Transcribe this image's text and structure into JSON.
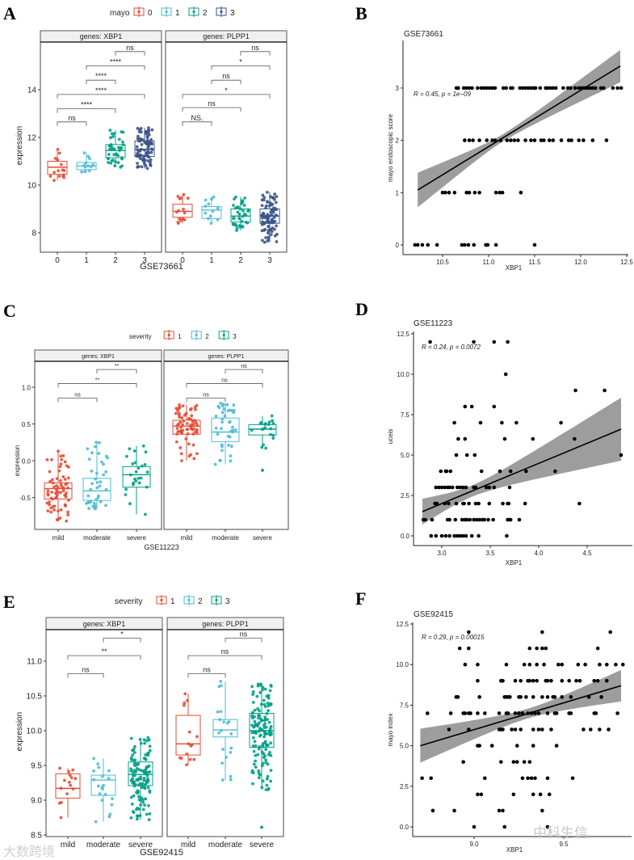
{
  "chart_data": [
    {
      "panel": "A",
      "type": "boxplot",
      "legend": {
        "title": "mayo",
        "levels": [
          "0",
          "1",
          "2",
          "3"
        ],
        "colors": [
          "#E64B35",
          "#4DBBD5",
          "#00A087",
          "#3C5488"
        ]
      },
      "categories": [
        "0",
        "1",
        "2",
        "3"
      ],
      "xlabel": "GSE73661",
      "ylabel": "expression",
      "yticks": [
        8,
        10,
        12,
        14
      ],
      "ylim": [
        7.2,
        16.0
      ],
      "facets": [
        {
          "strip": "genes: XBP1",
          "boxes": [
            {
              "q1": 10.45,
              "median": 10.75,
              "q3": 11.0,
              "lo": 10.2,
              "hi": 11.5,
              "n": 15
            },
            {
              "q1": 10.65,
              "median": 10.8,
              "q3": 10.95,
              "lo": 10.55,
              "hi": 11.35,
              "n": 12
            },
            {
              "q1": 11.15,
              "median": 11.45,
              "q3": 11.7,
              "lo": 10.75,
              "hi": 12.3,
              "n": 40
            },
            {
              "q1": 11.2,
              "median": 11.5,
              "q3": 11.85,
              "lo": 10.7,
              "hi": 12.4,
              "n": 90
            }
          ],
          "comparisons": [
            {
              "a": 0,
              "b": 1,
              "label": "ns",
              "y": 12.65
            },
            {
              "a": 0,
              "b": 2,
              "label": "****",
              "y": 13.2
            },
            {
              "a": 0,
              "b": 3,
              "label": "****",
              "y": 13.8
            },
            {
              "a": 1,
              "b": 2,
              "label": "****",
              "y": 14.4
            },
            {
              "a": 1,
              "b": 3,
              "label": "****",
              "y": 15.0
            },
            {
              "a": 2,
              "b": 3,
              "label": "ns",
              "y": 15.6
            }
          ]
        },
        {
          "strip": "genes: PLPP1",
          "boxes": [
            {
              "q1": 8.65,
              "median": 8.9,
              "q3": 9.2,
              "lo": 8.4,
              "hi": 9.6,
              "n": 15
            },
            {
              "q1": 8.6,
              "median": 8.95,
              "q3": 9.1,
              "lo": 8.4,
              "hi": 9.5,
              "n": 12
            },
            {
              "q1": 8.45,
              "median": 8.7,
              "q3": 9.0,
              "lo": 8.1,
              "hi": 9.5,
              "n": 40
            },
            {
              "q1": 8.4,
              "median": 8.7,
              "q3": 9.0,
              "lo": 7.6,
              "hi": 9.7,
              "n": 90
            }
          ],
          "comparisons": [
            {
              "a": 0,
              "b": 1,
              "label": "NS.",
              "y": 12.65
            },
            {
              "a": 0,
              "b": 2,
              "label": "ns",
              "y": 13.25
            },
            {
              "a": 0,
              "b": 3,
              "label": "*",
              "y": 13.8
            },
            {
              "a": 1,
              "b": 2,
              "label": "ns",
              "y": 14.4
            },
            {
              "a": 1,
              "b": 3,
              "label": "*",
              "y": 15.0
            },
            {
              "a": 2,
              "b": 3,
              "label": "ns",
              "y": 15.6
            }
          ]
        }
      ]
    },
    {
      "panel": "B",
      "type": "scatter",
      "title": "GSE73661",
      "xlabel": "XBP1",
      "ylabel": "mayo endoscopic score",
      "annotation": "R = 0.45, p = 1e−09",
      "xticks": [
        "10.5",
        "11.0",
        "11.5",
        "12.0",
        "12.5"
      ],
      "yticks": [
        "0",
        "1",
        "2",
        "3"
      ],
      "regression": {
        "x": [
          10.23,
          12.43
        ],
        "y": [
          1.05,
          3.42
        ]
      },
      "ci_halfwidth": {
        "start": 0.33,
        "end": 0.31,
        "min": 0.07,
        "at": 11.15
      },
      "points_by_y": {
        "3": [
          10.65,
          10.67,
          10.73,
          10.76,
          10.79,
          10.82,
          10.88,
          10.92,
          10.95,
          10.98,
          11.01,
          11.04,
          11.07,
          11.16,
          11.19,
          11.24,
          11.26,
          11.34,
          11.37,
          11.4,
          11.43,
          11.46,
          11.49,
          11.51,
          11.56,
          11.62,
          11.64,
          11.67,
          11.7,
          11.73,
          11.81,
          11.86,
          11.89,
          11.94,
          11.98,
          12.01,
          12.04,
          12.07,
          12.1,
          12.13,
          12.16,
          12.22,
          12.25,
          12.35,
          12.4,
          12.44
        ],
        "2": [
          10.74,
          10.79,
          10.83,
          10.9,
          10.98,
          11.04,
          11.07,
          11.13,
          11.2,
          11.24,
          11.28,
          11.32,
          11.4,
          11.46,
          11.5,
          11.57,
          11.6,
          11.66,
          11.7,
          11.79,
          11.87,
          11.9,
          11.98,
          12.03,
          12.13,
          12.28
        ],
        "1": [
          10.5,
          10.53,
          10.57,
          10.63,
          10.76,
          10.79,
          10.85,
          10.9,
          11.08,
          11.12,
          11.15,
          11.35
        ],
        "0": [
          10.2,
          10.23,
          10.28,
          10.34,
          10.44,
          10.71,
          10.74,
          10.78,
          10.84,
          10.97,
          10.99,
          11.08,
          11.5
        ]
      }
    },
    {
      "panel": "C",
      "type": "boxplot",
      "legend": {
        "title": "severity",
        "levels": [
          "1",
          "2",
          "3"
        ],
        "colors": [
          "#E64B35",
          "#4DBBD5",
          "#00A087"
        ]
      },
      "categories": [
        "mild",
        "moderate",
        "severe"
      ],
      "xlabel": "GSE11223",
      "ylabel": "expression",
      "yticks": [
        -0.5,
        0.0,
        0.5,
        1.0
      ],
      "ytick_labels": [
        "-0.5",
        "0.0",
        "0.5",
        "1.0"
      ],
      "ylim": [
        -0.93,
        1.35
      ],
      "facets": [
        {
          "strip": "genes: XBP1",
          "boxes": [
            {
              "q1": -0.52,
              "median": -0.38,
              "q3": -0.3,
              "lo": -0.82,
              "hi": 0.13,
              "n": 70
            },
            {
              "q1": -0.54,
              "median": -0.41,
              "q3": -0.24,
              "lo": -0.65,
              "hi": 0.25,
              "n": 40
            },
            {
              "q1": -0.36,
              "median": -0.19,
              "q3": -0.08,
              "lo": -0.73,
              "hi": 0.2,
              "n": 25
            }
          ],
          "comparisons": [
            {
              "a": 0,
              "b": 1,
              "label": "ns",
              "y": 0.85
            },
            {
              "a": 0,
              "b": 2,
              "label": "**",
              "y": 1.05
            },
            {
              "a": 1,
              "b": 2,
              "label": "**",
              "y": 1.24
            }
          ]
        },
        {
          "strip": "genes: PLPP1",
          "boxes": [
            {
              "q1": 0.36,
              "median": 0.47,
              "q3": 0.55,
              "lo": 0.0,
              "hi": 0.76,
              "n": 70
            },
            {
              "q1": 0.26,
              "median": 0.39,
              "q3": 0.58,
              "lo": -0.05,
              "hi": 0.78,
              "n": 40
            },
            {
              "q1": 0.35,
              "median": 0.43,
              "q3": 0.49,
              "lo": 0.17,
              "hi": 0.61,
              "n": 20,
              "outliers": [
                -0.13
              ]
            }
          ],
          "comparisons": [
            {
              "a": 0,
              "b": 1,
              "label": "ns",
              "y": 0.85
            },
            {
              "a": 0,
              "b": 2,
              "label": "ns",
              "y": 1.05
            },
            {
              "a": 1,
              "b": 2,
              "label": "ns",
              "y": 1.24
            }
          ]
        }
      ]
    },
    {
      "panel": "D",
      "type": "scatter",
      "title": "GSE11223",
      "xlabel": "XBP1",
      "ylabel": "uceis",
      "annotation": "R = 0.24, p = 0.0072",
      "xticks": [
        "3.0",
        "3.5",
        "4.0",
        "4.5"
      ],
      "yticks": [
        "0.0",
        "2.5",
        "5.0",
        "7.5",
        "10.0",
        "12.5"
      ],
      "regression": {
        "x": [
          2.8,
          4.85
        ],
        "y": [
          1.5,
          6.6
        ]
      },
      "ci_halfwidth": {
        "start": 0.8,
        "end": 1.95,
        "min": 0.35,
        "at": 3.3
      },
      "points_by_y": {
        "12": [
          2.88,
          3.33,
          3.54,
          3.68
        ],
        "10": [
          3.66
        ],
        "9": [
          4.38,
          4.68
        ],
        "8": [
          3.24,
          3.31,
          3.54
        ],
        "7": [
          3.13,
          3.4,
          3.62,
          3.77,
          4.23
        ],
        "6": [
          3.17,
          3.24,
          3.65,
          3.94,
          4.37
        ],
        "5": [
          3.15,
          3.26,
          3.34,
          4.85
        ],
        "4": [
          2.99,
          3.04,
          3.05,
          3.09,
          3.41,
          3.6,
          3.71,
          3.87,
          4.17
        ],
        "3": [
          2.94,
          2.97,
          3.0,
          3.03,
          3.06,
          3.08,
          3.11,
          3.16,
          3.19,
          3.22,
          3.25,
          3.33,
          3.35,
          3.46,
          3.49,
          3.54,
          3.7
        ],
        "2": [
          2.93,
          2.95,
          3.03,
          3.07,
          3.15,
          3.22,
          3.23,
          3.28,
          3.35,
          3.38,
          3.49,
          3.63,
          3.68,
          3.69,
          3.86,
          4.42
        ],
        "1": [
          2.81,
          2.83,
          2.9,
          3.06,
          3.08,
          3.14,
          3.21,
          3.24,
          3.26,
          3.29,
          3.33,
          3.36,
          3.39,
          3.42,
          3.44,
          3.48,
          3.53,
          3.68,
          3.69,
          3.71,
          3.8
        ],
        "0": [
          2.89,
          2.94,
          3.0,
          3.04,
          3.08,
          3.13,
          3.16,
          3.19,
          3.22,
          3.25,
          3.31,
          3.38,
          3.67
        ]
      }
    },
    {
      "panel": "E",
      "type": "boxplot",
      "legend": {
        "title": "severity",
        "levels": [
          "1",
          "2",
          "3"
        ],
        "colors": [
          "#E64B35",
          "#4DBBD5",
          "#00A087"
        ]
      },
      "categories": [
        "mild",
        "moderate",
        "severe"
      ],
      "xlabel": "GSE92415",
      "ylabel": "expression",
      "yticks": [
        8.5,
        9.0,
        9.5,
        10.0,
        10.5,
        11.0
      ],
      "ytick_labels": [
        "8.5",
        "9.0",
        "9.5",
        "10.0",
        "10.5",
        "11.0"
      ],
      "ylim": [
        8.48,
        11.45
      ],
      "facets": [
        {
          "strip": "genes: XBP1",
          "boxes": [
            {
              "q1": 9.03,
              "median": 9.17,
              "q3": 9.38,
              "lo": 8.75,
              "hi": 9.46,
              "n": 15
            },
            {
              "q1": 9.07,
              "median": 9.29,
              "q3": 9.36,
              "lo": 8.69,
              "hi": 9.6,
              "n": 20
            },
            {
              "q1": 9.21,
              "median": 9.37,
              "q3": 9.55,
              "lo": 8.72,
              "hi": 9.9,
              "n": 120
            }
          ],
          "comparisons": [
            {
              "a": 0,
              "b": 1,
              "label": "ns",
              "y": 10.82
            },
            {
              "a": 0,
              "b": 2,
              "label": "**",
              "y": 11.08
            },
            {
              "a": 1,
              "b": 2,
              "label": "*",
              "y": 11.33
            }
          ]
        },
        {
          "strip": "genes: PLPP1",
          "boxes": [
            {
              "q1": 9.65,
              "median": 9.81,
              "q3": 10.22,
              "lo": 9.51,
              "hi": 10.53,
              "n": 15
            },
            {
              "q1": 9.91,
              "median": 10.01,
              "q3": 10.16,
              "lo": 9.29,
              "hi": 10.71,
              "n": 20
            },
            {
              "q1": 9.76,
              "median": 10.0,
              "q3": 10.25,
              "lo": 9.15,
              "hi": 10.67,
              "n": 140,
              "outliers": [
                8.61
              ]
            }
          ],
          "comparisons": [
            {
              "a": 0,
              "b": 1,
              "label": "ns",
              "y": 10.82
            },
            {
              "a": 0,
              "b": 2,
              "label": "ns",
              "y": 11.08
            },
            {
              "a": 1,
              "b": 2,
              "label": "ns",
              "y": 11.33
            }
          ]
        }
      ]
    },
    {
      "panel": "F",
      "type": "scatter",
      "title": "GSE92415",
      "xlabel": "XBP1",
      "ylabel": "mayo index",
      "annotation": "R = 0.29, p = 0.00015",
      "xticks": [
        "9.0",
        "9.5"
      ],
      "yticks": [
        "0.0",
        "2.5",
        "5.0",
        "7.5",
        "10.0",
        "12.5"
      ],
      "regression": {
        "x": [
          8.7,
          9.82
        ],
        "y": [
          5.0,
          8.7
        ]
      },
      "ci_halfwidth": {
        "start": 1.05,
        "end": 0.97,
        "min": 0.3,
        "at": 9.3
      },
      "points_by_y": {
        "12": [
          8.97,
          9.38,
          9.76
        ],
        "11": [
          8.92,
          8.97,
          9.31,
          9.35,
          9.38,
          9.4,
          9.69
        ],
        "10": [
          8.95,
          9.02,
          9.18,
          9.28,
          9.31,
          9.35,
          9.39,
          9.47,
          9.49,
          9.58,
          9.62,
          9.7,
          9.74,
          9.79,
          9.83
        ],
        "9": [
          9.02,
          9.15,
          9.16,
          9.23,
          9.26,
          9.3,
          9.31,
          9.33,
          9.35,
          9.4,
          9.41,
          9.43,
          9.49,
          9.53,
          9.57,
          9.59,
          9.67,
          9.69,
          9.74
        ],
        "8": [
          8.9,
          8.91,
          9.03,
          9.17,
          9.18,
          9.19,
          9.2,
          9.25,
          9.26,
          9.29,
          9.33,
          9.38,
          9.41,
          9.44,
          9.45,
          9.49,
          9.54,
          9.64,
          9.71
        ],
        "7": [
          8.74,
          8.87,
          8.94,
          8.95,
          8.97,
          8.98,
          9.02,
          9.06,
          9.14,
          9.18,
          9.19,
          9.23,
          9.25,
          9.27,
          9.3,
          9.32,
          9.34,
          9.36,
          9.41,
          9.45,
          9.46,
          9.53,
          9.54,
          9.67,
          9.68,
          9.8
        ],
        "6": [
          8.86,
          8.97,
          9.14,
          9.15,
          9.16,
          9.21,
          9.23,
          9.26,
          9.33,
          9.36,
          9.38,
          9.43,
          9.61,
          9.65,
          9.7,
          9.75
        ],
        "5": [
          9.02,
          9.03,
          9.1,
          9.24,
          9.33,
          9.46
        ],
        "4": [
          8.94,
          9.15,
          9.22,
          9.24,
          9.28,
          9.31
        ],
        "3": [
          8.71,
          8.76,
          9.06,
          9.27,
          9.3,
          9.32,
          9.34,
          9.41,
          9.55
        ],
        "2": [
          9.02,
          9.04,
          9.22,
          9.33,
          9.37,
          9.42
        ],
        "1": [
          8.77,
          8.89,
          9.14,
          9.16,
          9.38
        ],
        "0": [
          9.0,
          9.17,
          9.41
        ]
      }
    }
  ],
  "watermarks": [
    "大数跨境",
    "中科生信"
  ]
}
